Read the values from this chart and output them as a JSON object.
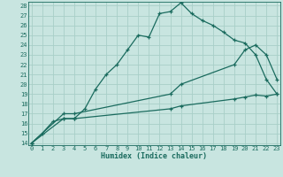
{
  "xlabel": "Humidex (Indice chaleur)",
  "bg_color": "#c8e5e0",
  "grid_color": "#a8cfc8",
  "line_color": "#1a6b5e",
  "xlim_min": -0.3,
  "xlim_max": 23.3,
  "ylim_min": 13.8,
  "ylim_max": 28.4,
  "xticks": [
    0,
    1,
    2,
    3,
    4,
    5,
    6,
    7,
    8,
    9,
    10,
    11,
    12,
    13,
    14,
    15,
    16,
    17,
    18,
    19,
    20,
    21,
    22,
    23
  ],
  "yticks": [
    14,
    15,
    16,
    17,
    18,
    19,
    20,
    21,
    22,
    23,
    24,
    25,
    26,
    27,
    28
  ],
  "line1_x": [
    0,
    1,
    2,
    3,
    4,
    5,
    6,
    7,
    8,
    9,
    10,
    11,
    12,
    13,
    14,
    15,
    16,
    17,
    18,
    19,
    20,
    21,
    22,
    23
  ],
  "line1_y": [
    14,
    15,
    16.2,
    16.5,
    16.5,
    17.5,
    19.5,
    21,
    22,
    23.5,
    25.0,
    24.8,
    27.2,
    27.4,
    28.3,
    27.2,
    26.5,
    26.0,
    25.3,
    24.5,
    24.2,
    23.0,
    20.5,
    19.0
  ],
  "line2_x": [
    0,
    3,
    4,
    13,
    14,
    19,
    20,
    21,
    22,
    23
  ],
  "line2_y": [
    14,
    17,
    17,
    19,
    20,
    22,
    23.5,
    24.0,
    23.0,
    20.5
  ],
  "line3_x": [
    0,
    3,
    4,
    13,
    14,
    19,
    20,
    21,
    22,
    23
  ],
  "line3_y": [
    14,
    16.5,
    16.5,
    17.5,
    17.8,
    18.5,
    18.7,
    18.9,
    18.8,
    19.0
  ]
}
